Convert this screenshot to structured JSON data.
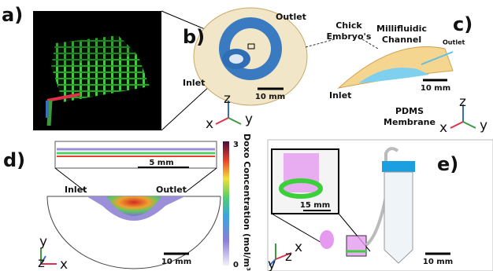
{
  "panels": [
    {
      "label": "a)"
    },
    {
      "label": "b)",
      "outlet": "Outlet",
      "inlet": "Inlet",
      "embryo": [
        "Chick",
        "Embryo's"
      ],
      "scale_bar": "10 mm",
      "axes": {
        "z": "z",
        "x": "x",
        "y": "y"
      }
    },
    {
      "label": "c)",
      "channel": [
        "Millifluidic",
        "Channel"
      ],
      "outlet": "Outlet",
      "inlet": "Inlet",
      "membrane": [
        "PDMS",
        "Membrane"
      ],
      "scale_bar": "10 mm",
      "axes": {
        "z": "z",
        "x": "x",
        "y": "y"
      }
    },
    {
      "label": "d)",
      "inset_scale_bar": "5 mm",
      "inlet": "Inlet",
      "outlet": "Outlet",
      "colorbar": {
        "title": "Doxo Concentration (mol/m³)",
        "max": "3",
        "min": "0"
      },
      "scale_bar": "10 mm",
      "axes": {
        "y": "y",
        "z": "z",
        "x": "x"
      }
    },
    {
      "label": "e)",
      "inset_scale_bar": "15 mm",
      "scale_bar": "10 mm",
      "axes": {
        "y": "y",
        "z": "z",
        "x": "x"
      }
    }
  ]
}
